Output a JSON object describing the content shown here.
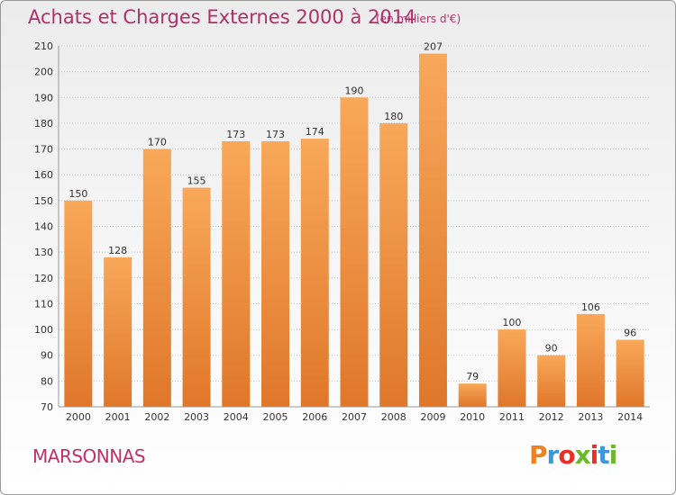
{
  "header": {
    "title": "Achats et Charges Externes 2000 à 2014",
    "unit": "(en milliers d'€)"
  },
  "footer": {
    "commune": "MARSONNAS",
    "logo_text": "Proxiti"
  },
  "colors": {
    "title": "#b0306a",
    "bar_light": "#f8a85a",
    "bar_dark": "#e0772a",
    "logo": [
      "#f08020",
      "#3a9ad9",
      "#e8302a",
      "#6ab82c",
      "#e8302a",
      "#3a9ad9",
      "#6ab82c"
    ]
  },
  "chart_data": {
    "type": "bar",
    "categories": [
      "2000",
      "2001",
      "2002",
      "2003",
      "2004",
      "2005",
      "2006",
      "2007",
      "2008",
      "2009",
      "2010",
      "2011",
      "2012",
      "2013",
      "2014"
    ],
    "values": [
      150,
      128,
      170,
      155,
      173,
      173,
      174,
      190,
      180,
      207,
      79,
      100,
      90,
      106,
      96
    ],
    "ylim": [
      70,
      210
    ],
    "yticks": [
      70,
      80,
      90,
      100,
      110,
      120,
      130,
      140,
      150,
      160,
      170,
      180,
      190,
      200,
      210
    ],
    "grid": true,
    "data_labels": true
  }
}
